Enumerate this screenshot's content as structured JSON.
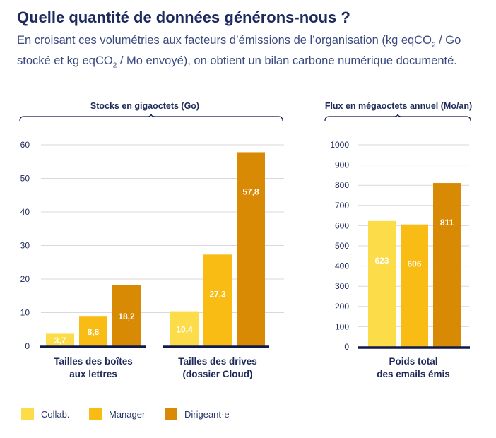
{
  "header": {
    "title": "Quelle quantité de données générons-nous ?",
    "subtitle_part1": "En croisant ces volumétries aux facteurs d’émissions de l’organisation (kg eqCO",
    "subtitle_sub1": "2",
    "subtitle_part2": " / Go stocké et kg eqCO",
    "subtitle_sub2": "2",
    "subtitle_part3": " / Mo envoyé), on obtient un bilan carbone numérique documenté."
  },
  "colors": {
    "collab": "#fddc4a",
    "manager": "#f9bc14",
    "dirigeant": "#d98a05",
    "axis": "#101a4a",
    "grid": "#d8d9de",
    "text": "#1f2a5a"
  },
  "legend": [
    {
      "label": "Collab.",
      "color": "#fddc4a"
    },
    {
      "label": "Manager",
      "color": "#f9bc14"
    },
    {
      "label": "Dirigeant·e",
      "color": "#d98a05"
    }
  ],
  "chart_data": [
    {
      "type": "bar",
      "title": "Stocks en gigaoctets (Go)",
      "categories": [
        "Tailles des boîtes aux lettres",
        "Tailles des drives (dossier Cloud)"
      ],
      "series": [
        {
          "name": "Collab.",
          "values": [
            3.7,
            10.4
          ]
        },
        {
          "name": "Manager",
          "values": [
            8.8,
            27.3
          ]
        },
        {
          "name": "Dirigeant·e",
          "values": [
            18.2,
            57.8
          ]
        }
      ],
      "value_labels": [
        [
          "3,7",
          "8,8",
          "18,2"
        ],
        [
          "10,4",
          "27,3",
          "57,8"
        ]
      ],
      "category_lines": [
        [
          "Tailles des boîtes",
          "aux lettres"
        ],
        [
          "Tailles des drives",
          "(dossier Cloud)"
        ]
      ],
      "yticks": [
        "0",
        "10",
        "20",
        "30",
        "40",
        "50",
        "60"
      ],
      "ylim": [
        0,
        60
      ],
      "grid": true
    },
    {
      "type": "bar",
      "title": "Flux en mégaoctets annuel (Mo/an)",
      "categories": [
        "Poids total des emails émis"
      ],
      "series": [
        {
          "name": "Collab.",
          "values": [
            623
          ]
        },
        {
          "name": "Manager",
          "values": [
            606
          ]
        },
        {
          "name": "Dirigeant·e",
          "values": [
            811
          ]
        }
      ],
      "value_labels": [
        [
          "623",
          "606",
          "811"
        ]
      ],
      "category_lines": [
        [
          "Poids total",
          "des emails émis"
        ]
      ],
      "yticks": [
        "0",
        "100",
        "200",
        "300",
        "400",
        "500",
        "600",
        "700",
        "800",
        "900",
        "1000"
      ],
      "ylim": [
        0,
        1000
      ],
      "grid": true
    }
  ]
}
